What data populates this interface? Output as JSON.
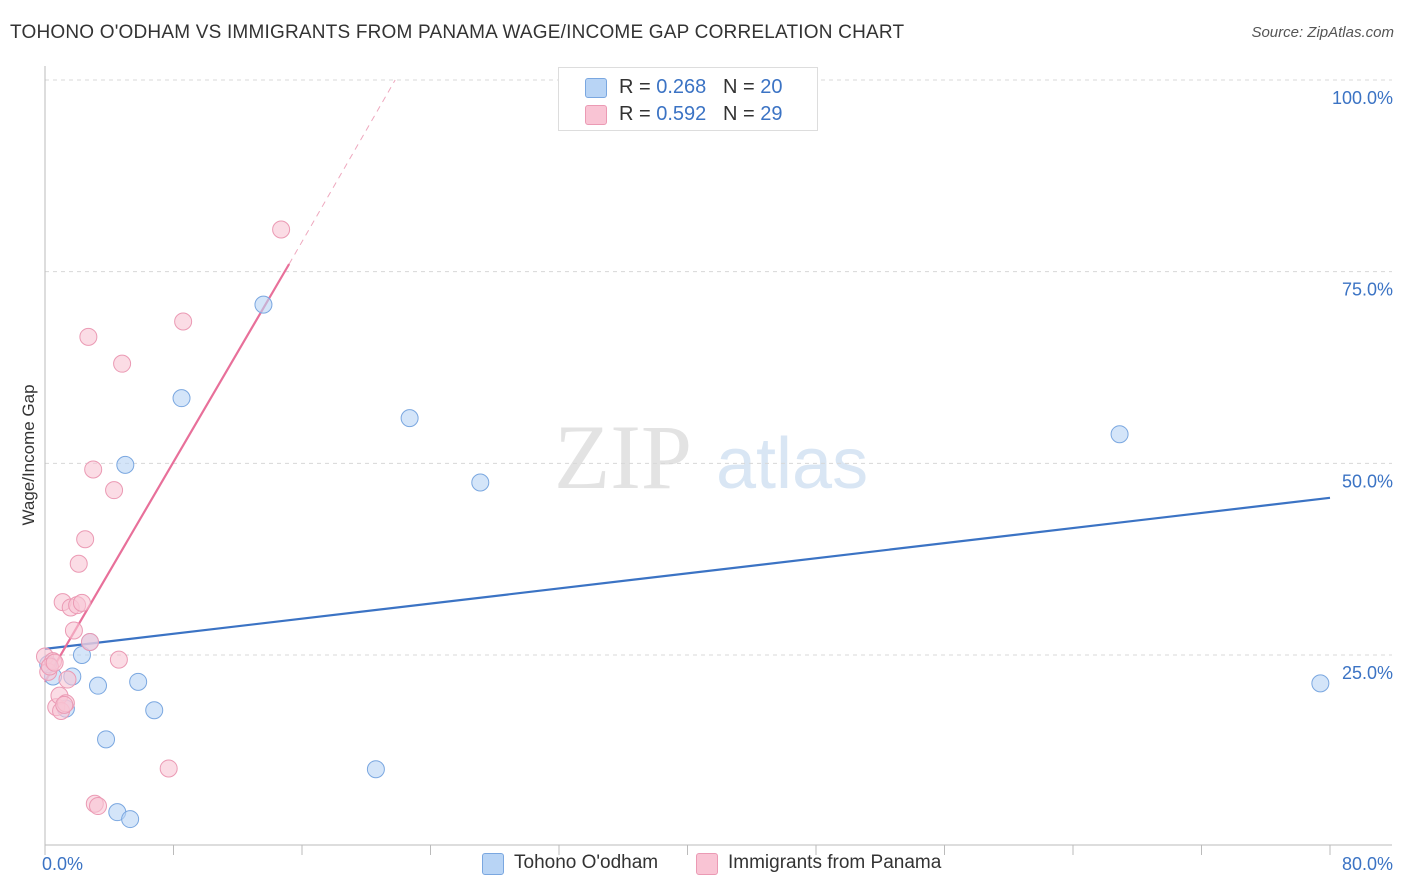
{
  "header": {
    "title": "TOHONO O'ODHAM VS IMMIGRANTS FROM PANAMA WAGE/INCOME GAP CORRELATION CHART",
    "source": "Source: ZipAtlas.com"
  },
  "watermark": {
    "part1": "ZIP",
    "part2": "atlas"
  },
  "legend": {
    "items": [
      {
        "r_label": "R = ",
        "r_value": "0.268",
        "n_label": "N = ",
        "n_value": "20"
      },
      {
        "r_label": "R = ",
        "r_value": "0.592",
        "n_label": "N = ",
        "n_value": "29"
      }
    ]
  },
  "chart_data": {
    "type": "scatter",
    "title": "TOHONO O'ODHAM VS IMMIGRANTS FROM PANAMA WAGE/INCOME GAP CORRELATION CHART",
    "xlabel": "",
    "ylabel": "Wage/Income Gap",
    "xlim": [
      0,
      80
    ],
    "ylim": [
      0,
      105
    ],
    "x_tick_labels": [
      "0.0%",
      "80.0%"
    ],
    "y_ticks": [
      25,
      50,
      75,
      100
    ],
    "y_tick_labels": [
      "25.0%",
      "50.0%",
      "75.0%",
      "100.0%"
    ],
    "grid": true,
    "legend_position": "top-center",
    "colors": {
      "blue": "#3b73c4",
      "pink": "#e8709a",
      "blue_fill": "#b8d4f5",
      "pink_fill": "#f9c4d4"
    },
    "series": [
      {
        "name": "Tohono O'odham",
        "color": "#3b73c4",
        "points": [
          [
            0.5,
            22.2
          ],
          [
            1.3,
            18.0
          ],
          [
            1.7,
            22.2
          ],
          [
            2.3,
            25.0
          ],
          [
            2.8,
            26.7
          ],
          [
            3.3,
            21.0
          ],
          [
            3.8,
            14.0
          ],
          [
            4.5,
            4.5
          ],
          [
            5.0,
            49.8
          ],
          [
            5.3,
            3.6
          ],
          [
            5.8,
            21.5
          ],
          [
            6.8,
            17.8
          ],
          [
            8.5,
            58.5
          ],
          [
            13.6,
            70.7
          ],
          [
            20.6,
            10.1
          ],
          [
            22.7,
            55.9
          ],
          [
            27.1,
            47.5
          ],
          [
            66.9,
            53.8
          ],
          [
            79.4,
            21.3
          ],
          [
            0.2,
            23.8
          ]
        ],
        "trend": {
          "x": [
            0,
            80
          ],
          "y": [
            25.8,
            45.5
          ]
        }
      },
      {
        "name": "Immigrants from Panama",
        "color": "#e8709a",
        "points": [
          [
            0.0,
            24.8
          ],
          [
            0.2,
            22.8
          ],
          [
            0.5,
            24.2
          ],
          [
            0.7,
            18.2
          ],
          [
            0.9,
            19.7
          ],
          [
            1.0,
            17.7
          ],
          [
            1.1,
            31.9
          ],
          [
            1.3,
            18.7
          ],
          [
            1.4,
            21.8
          ],
          [
            1.6,
            31.2
          ],
          [
            1.8,
            28.2
          ],
          [
            2.0,
            31.5
          ],
          [
            2.1,
            36.9
          ],
          [
            2.3,
            31.8
          ],
          [
            2.5,
            40.1
          ],
          [
            2.7,
            66.5
          ],
          [
            2.8,
            26.7
          ],
          [
            3.0,
            49.2
          ],
          [
            3.1,
            5.6
          ],
          [
            3.3,
            5.3
          ],
          [
            4.3,
            46.5
          ],
          [
            4.6,
            24.4
          ],
          [
            4.8,
            63.0
          ],
          [
            7.7,
            10.2
          ],
          [
            8.6,
            68.5
          ],
          [
            14.7,
            80.5
          ],
          [
            0.3,
            23.5
          ],
          [
            0.6,
            24.0
          ],
          [
            1.2,
            18.5
          ]
        ],
        "trend": {
          "x": [
            0,
            15.2
          ],
          "y": [
            21.5,
            76.0
          ]
        },
        "trend_ext": {
          "x": [
            15.2,
            21.8
          ],
          "y": [
            76.0,
            100.0
          ]
        }
      }
    ]
  },
  "bottom_legend": {
    "items": [
      {
        "label": "Tohono O'odham"
      },
      {
        "label": "Immigrants from Panama"
      }
    ]
  }
}
